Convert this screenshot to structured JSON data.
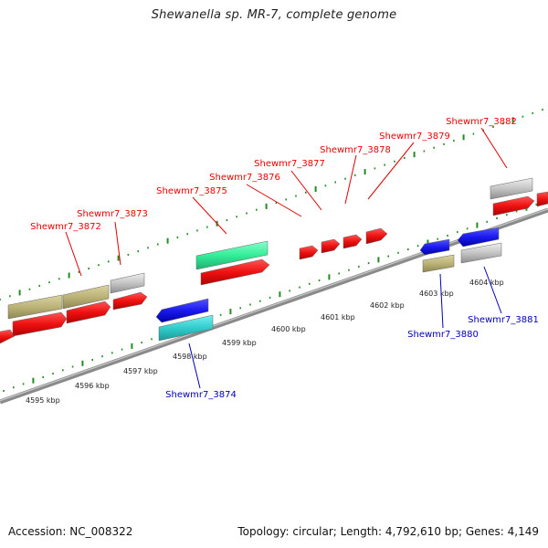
{
  "title": "Shewanella sp. MR-7, complete genome",
  "footer": {
    "accession": "Accession: NC_008322",
    "summary": "Topology: circular; Length: 4,792,610 bp; Genes: 4,149"
  },
  "colors": {
    "forward_label": "#ee0000",
    "reverse_label": "#0000bb",
    "tick": "#228b22",
    "backbone": "#888888",
    "cds": "#ee1111",
    "blue": "#1a1aee",
    "teal": "#33cccc",
    "mint": "#33ee99",
    "olive": "#bbb377",
    "grey": "#c4c4c4"
  },
  "scale_labels": [
    "4595 kbp",
    "4596 kbp",
    "4597 kbp",
    "4598 kbp",
    "4599 kbp",
    "4600 kbp",
    "4601 kbp",
    "4602 kbp",
    "4603 kbp",
    "4604 kbp"
  ],
  "forward_genes": [
    "Shewmr7_3872",
    "Shewmr7_3873",
    "Shewmr7_3875",
    "Shewmr7_3876",
    "Shewmr7_3877",
    "Shewmr7_3878",
    "Shewmr7_3879",
    "Shewmr7_3882"
  ],
  "reverse_genes": [
    "Shewmr7_3874",
    "Shewmr7_3880",
    "Shewmr7_3881"
  ]
}
